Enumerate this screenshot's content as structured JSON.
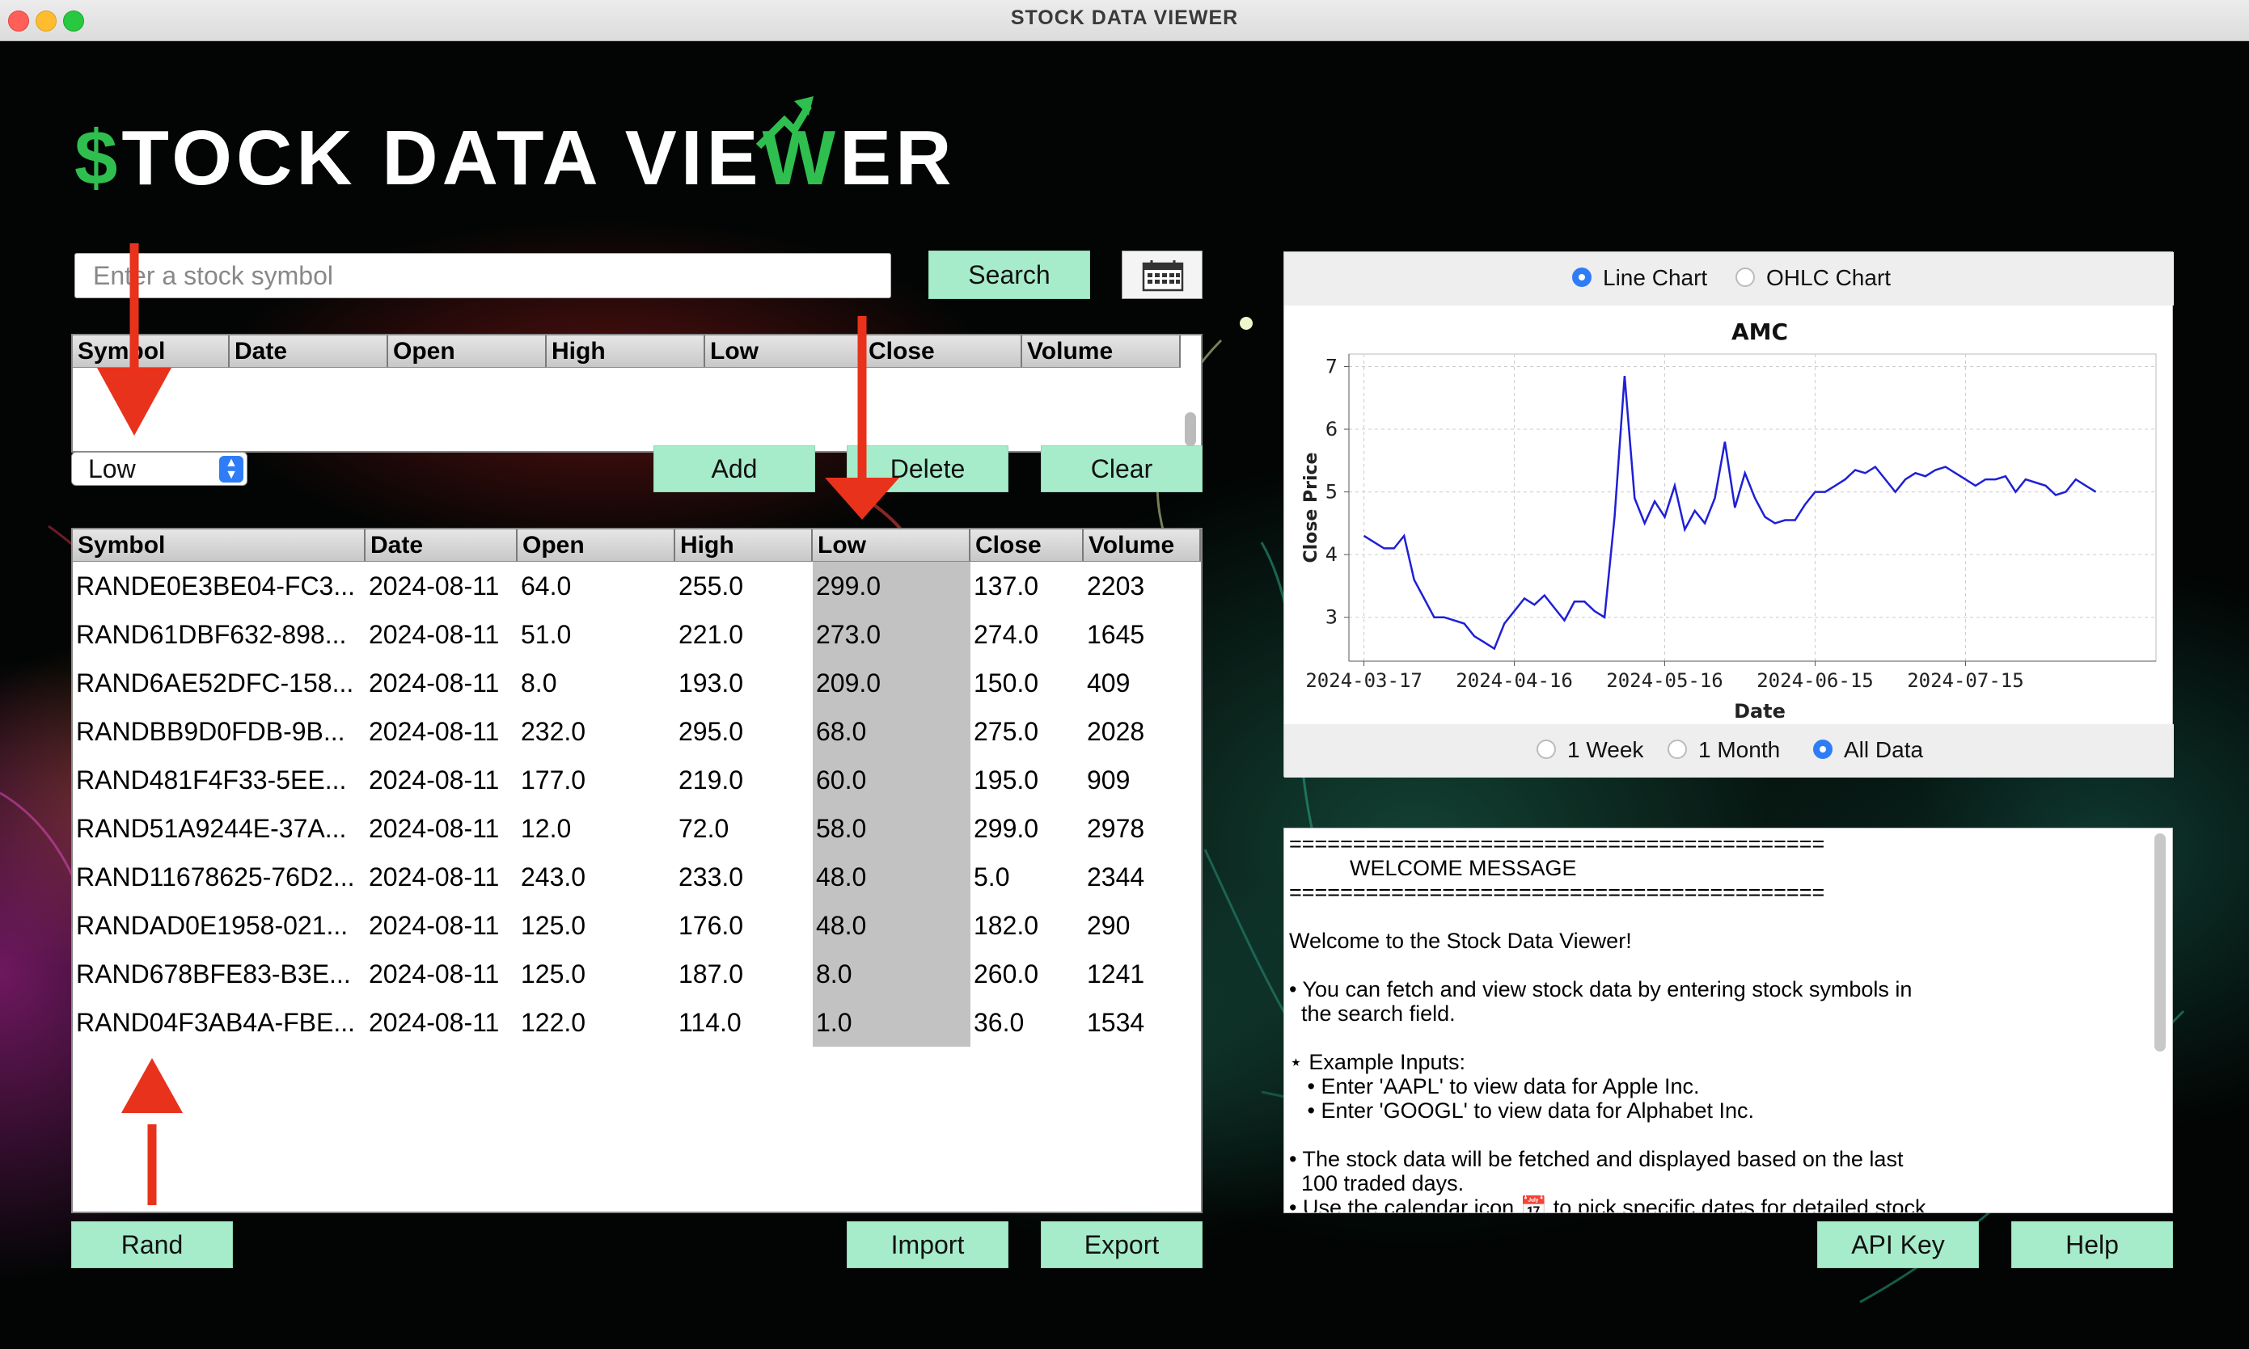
{
  "window": {
    "title": "STOCK DATA VIEWER"
  },
  "logo": {
    "text_pre": "",
    "dollar": "$",
    "part1": "TOCK DATA VIE",
    "w": "W",
    "part2": "ER"
  },
  "search": {
    "placeholder": "Enter a stock symbol",
    "button_label": "Search",
    "calendar_icon": "calendar-icon"
  },
  "small_table": {
    "columns": [
      "Symbol",
      "Date",
      "Open",
      "High",
      "Low",
      "Close",
      "Volume"
    ]
  },
  "sort_select": {
    "value": "Low"
  },
  "actions": {
    "add": "Add",
    "delete": "Delete",
    "clear": "Clear"
  },
  "main_table": {
    "columns": [
      "Symbol",
      "Date",
      "Open",
      "High",
      "Low",
      "Close",
      "Volume"
    ],
    "rows": [
      [
        "RANDE0E3BE04-FC3...",
        "2024-08-11",
        "64.0",
        "255.0",
        "299.0",
        "137.0",
        "2203"
      ],
      [
        "RAND61DBF632-898...",
        "2024-08-11",
        "51.0",
        "221.0",
        "273.0",
        "274.0",
        "1645"
      ],
      [
        "RAND6AE52DFC-158...",
        "2024-08-11",
        "8.0",
        "193.0",
        "209.0",
        "150.0",
        "409"
      ],
      [
        "RANDBB9D0FDB-9B...",
        "2024-08-11",
        "232.0",
        "295.0",
        "68.0",
        "275.0",
        "2028"
      ],
      [
        "RAND481F4F33-5EE...",
        "2024-08-11",
        "177.0",
        "219.0",
        "60.0",
        "195.0",
        "909"
      ],
      [
        "RAND51A9244E-37A...",
        "2024-08-11",
        "12.0",
        "72.0",
        "58.0",
        "299.0",
        "2978"
      ],
      [
        "RAND11678625-76D2...",
        "2024-08-11",
        "243.0",
        "233.0",
        "48.0",
        "5.0",
        "2344"
      ],
      [
        "RANDAD0E1958-021...",
        "2024-08-11",
        "125.0",
        "176.0",
        "48.0",
        "182.0",
        "290"
      ],
      [
        "RAND678BFE83-B3E...",
        "2024-08-11",
        "125.0",
        "187.0",
        "8.0",
        "260.0",
        "1241"
      ],
      [
        "RAND04F3AB4A-FBE...",
        "2024-08-11",
        "122.0",
        "114.0",
        "1.0",
        "36.0",
        "1534"
      ]
    ]
  },
  "bottom_buttons": {
    "rand": "Rand",
    "import": "Import",
    "export": "Export",
    "api_key": "API Key",
    "help": "Help"
  },
  "chart_options": {
    "line": "Line Chart",
    "ohlc": "OHLC Chart",
    "selected": "Line Chart"
  },
  "range_options": {
    "week": "1 Week",
    "month": "1 Month",
    "all": "All Data",
    "selected": "All Data"
  },
  "chart_data": {
    "type": "line",
    "title": "AMC",
    "xlabel": "Date",
    "ylabel": "Close Price",
    "x_ticks": [
      "2024-03-17",
      "2024-04-16",
      "2024-05-16",
      "2024-06-15",
      "2024-07-15"
    ],
    "y_ticks": [
      3,
      4,
      5,
      6,
      7
    ],
    "ylim": [
      2.3,
      7.2
    ],
    "grid": true,
    "series": [
      {
        "color": "#1f1fd6",
        "x": [
          "2024-03-17",
          "2024-03-19",
          "2024-03-21",
          "2024-03-23",
          "2024-03-25",
          "2024-03-27",
          "2024-03-29",
          "2024-03-31",
          "2024-04-02",
          "2024-04-04",
          "2024-04-06",
          "2024-04-08",
          "2024-04-10",
          "2024-04-12",
          "2024-04-14",
          "2024-04-16",
          "2024-04-18",
          "2024-04-20",
          "2024-04-22",
          "2024-04-24",
          "2024-04-26",
          "2024-04-28",
          "2024-04-30",
          "2024-05-02",
          "2024-05-04",
          "2024-05-06",
          "2024-05-08",
          "2024-05-10",
          "2024-05-12",
          "2024-05-14",
          "2024-05-16",
          "2024-05-18",
          "2024-05-20",
          "2024-05-22",
          "2024-05-24",
          "2024-05-26",
          "2024-05-28",
          "2024-05-30",
          "2024-06-01",
          "2024-06-03",
          "2024-06-05",
          "2024-06-07",
          "2024-06-09",
          "2024-06-11",
          "2024-06-13",
          "2024-06-15",
          "2024-06-17",
          "2024-06-19",
          "2024-06-21",
          "2024-06-23",
          "2024-06-25",
          "2024-06-27",
          "2024-06-29",
          "2024-07-01",
          "2024-07-03",
          "2024-07-05",
          "2024-07-07",
          "2024-07-09",
          "2024-07-11",
          "2024-07-13",
          "2024-07-15",
          "2024-07-17",
          "2024-07-19",
          "2024-07-21",
          "2024-07-23",
          "2024-07-25",
          "2024-07-27",
          "2024-07-29",
          "2024-07-31",
          "2024-08-02",
          "2024-08-04",
          "2024-08-06",
          "2024-08-08",
          "2024-08-10"
        ],
        "y": [
          4.3,
          4.2,
          4.1,
          4.1,
          4.3,
          3.6,
          3.3,
          3.0,
          3.0,
          2.95,
          2.9,
          2.7,
          2.6,
          2.5,
          2.9,
          3.1,
          3.3,
          3.2,
          3.35,
          3.15,
          2.95,
          3.25,
          3.25,
          3.1,
          3.0,
          4.6,
          6.85,
          4.9,
          4.5,
          4.85,
          4.6,
          5.1,
          4.4,
          4.7,
          4.5,
          4.9,
          5.8,
          4.75,
          5.3,
          4.9,
          4.6,
          4.5,
          4.55,
          4.55,
          4.8,
          5.0,
          5.0,
          5.1,
          5.2,
          5.35,
          5.3,
          5.4,
          5.2,
          5.0,
          5.2,
          5.3,
          5.25,
          5.35,
          5.4,
          5.3,
          5.2,
          5.1,
          5.2,
          5.2,
          5.25,
          5.0,
          5.2,
          5.15,
          5.1,
          4.95,
          5.0,
          5.2,
          5.1,
          5.0
        ]
      }
    ]
  },
  "welcome": {
    "lines": [
      "==========================================",
      "          WELCOME MESSAGE",
      "==========================================",
      "",
      "Welcome to the Stock Data Viewer!",
      "",
      "• You can fetch and view stock data by entering stock symbols in",
      "  the search field.",
      "",
      "⋆ Example Inputs:",
      "   • Enter 'AAPL' to view data for Apple Inc.",
      "   • Enter 'GOOGL' to view data for Alphabet Inc.",
      "",
      "• The stock data will be fetched and displayed based on the last",
      "  100 traded days.",
      "• Use the calendar icon 📅 to pick specific dates for detailed stock"
    ]
  },
  "annotations": {
    "arrow_color": "#e8321c"
  }
}
